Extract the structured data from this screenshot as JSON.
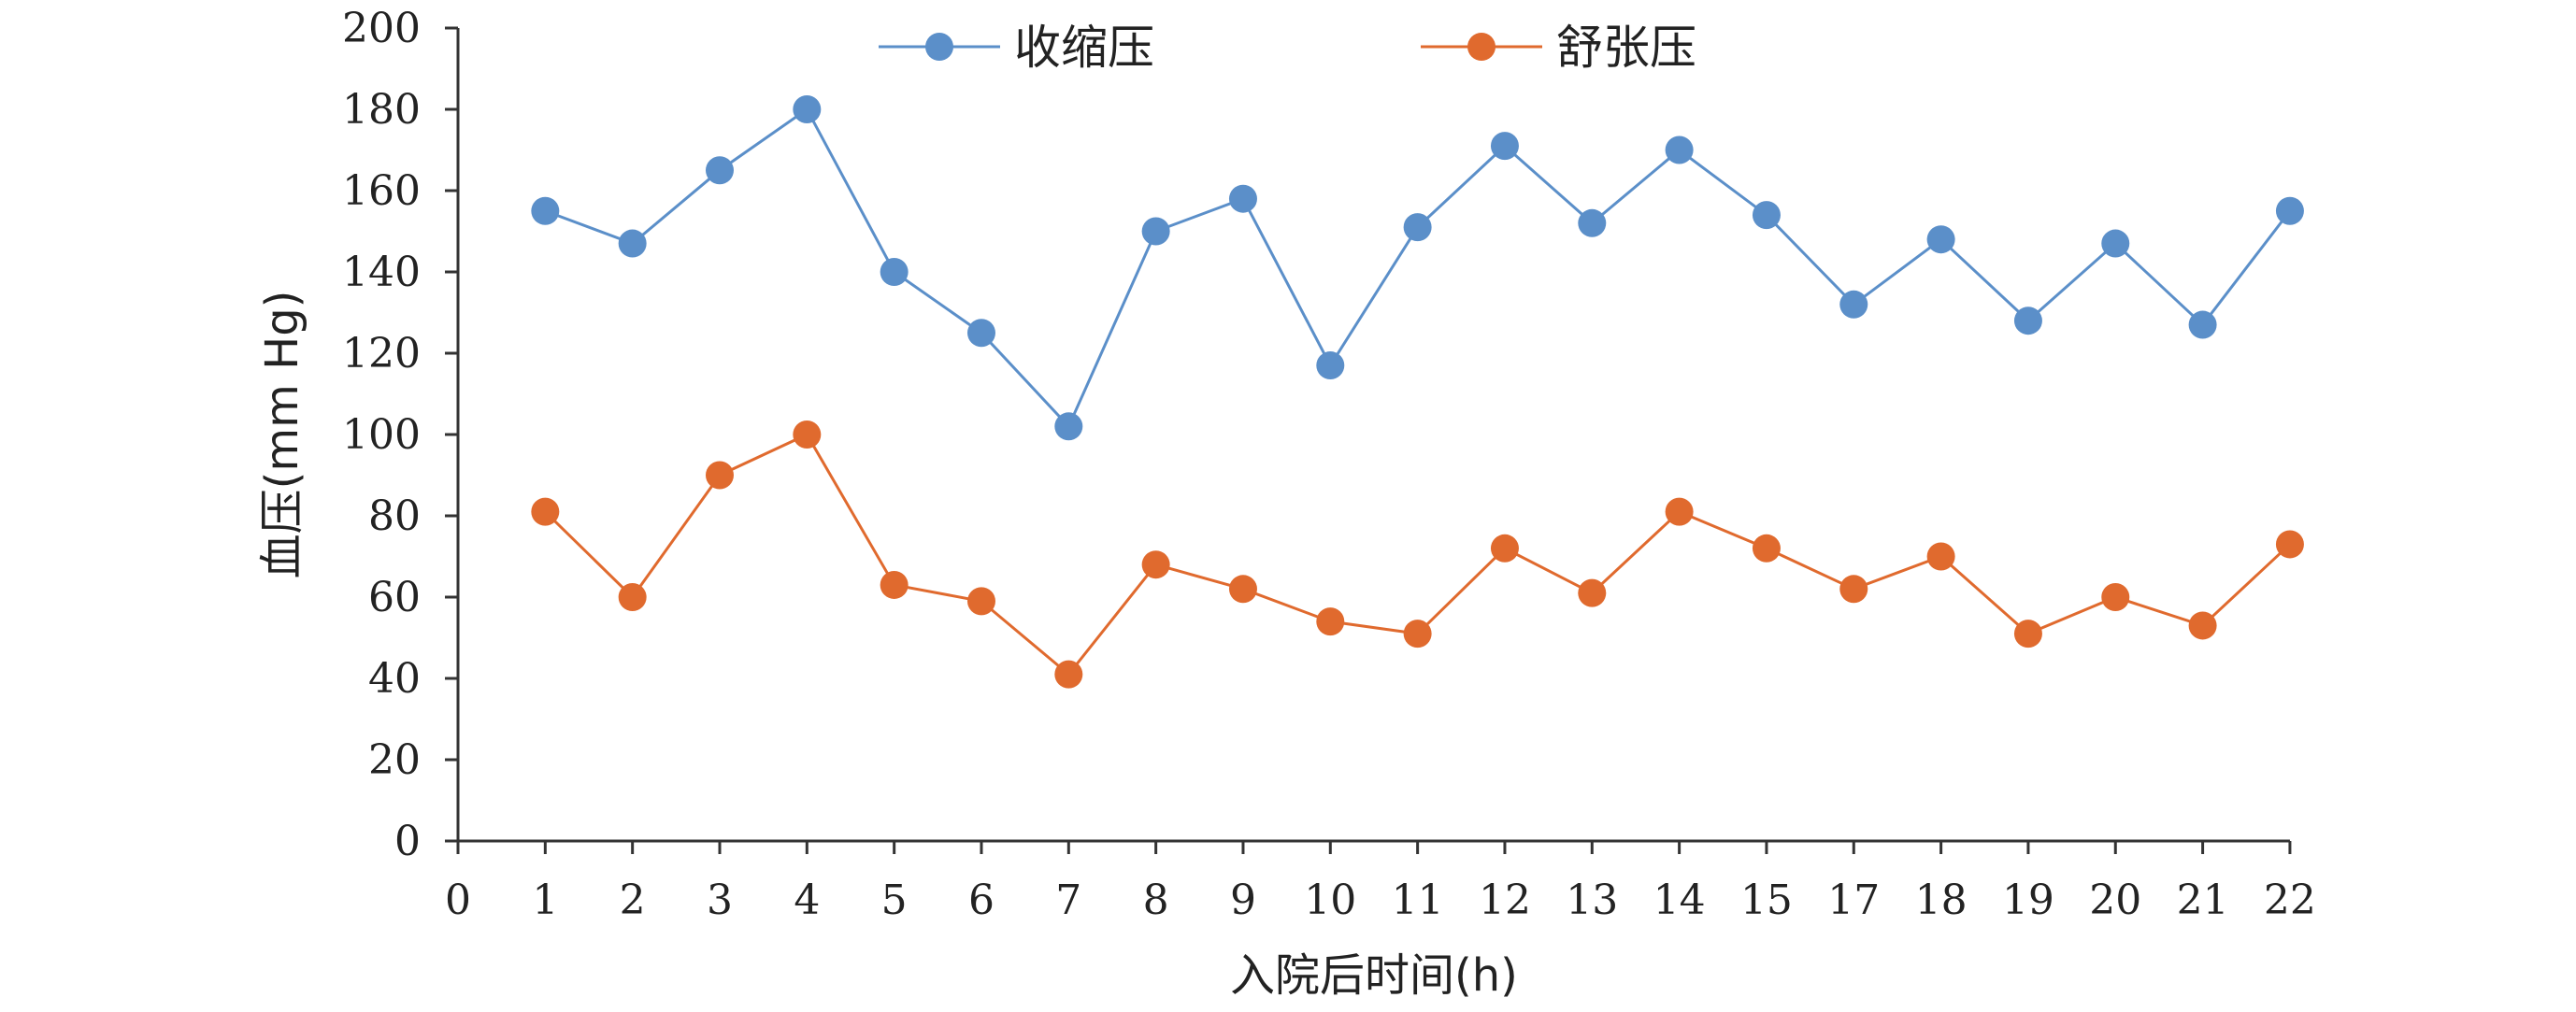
{
  "chart_data": {
    "type": "line",
    "xlabel": "入院后时间(h)",
    "ylabel": "血压(mm Hg)",
    "ylim": [
      0,
      200
    ],
    "yticks": [
      "0",
      "20",
      "40",
      "60",
      "80",
      "100",
      "120",
      "140",
      "160",
      "180",
      "200"
    ],
    "categories": [
      "0",
      "1",
      "2",
      "3",
      "4",
      "5",
      "6",
      "7",
      "8",
      "9",
      "10",
      "11",
      "12",
      "13",
      "14",
      "15",
      "17",
      "18",
      "19",
      "20",
      "21",
      "22"
    ],
    "grid": false,
    "legend_position": "top",
    "series": [
      {
        "name": "收缩压",
        "color": "#5b8fc9",
        "values": [
          null,
          155,
          147,
          165,
          180,
          140,
          125,
          102,
          150,
          158,
          117,
          151,
          171,
          152,
          170,
          154,
          132,
          148,
          128,
          147,
          127,
          155
        ]
      },
      {
        "name": "舒张压",
        "color": "#e06a2e",
        "values": [
          null,
          81,
          60,
          90,
          100,
          63,
          59,
          41,
          68,
          62,
          54,
          51,
          72,
          61,
          81,
          72,
          62,
          70,
          51,
          60,
          53,
          73
        ]
      }
    ]
  }
}
